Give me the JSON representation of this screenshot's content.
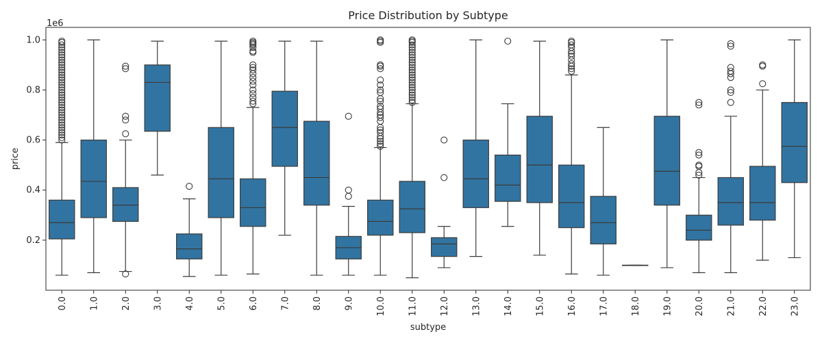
{
  "chart_data": {
    "type": "box",
    "title": "Price Distribution by Subtype",
    "xlabel": "subtype",
    "ylabel": "price",
    "y_offset_label": "1e6",
    "ylim": [
      0.0,
      1.05
    ],
    "y_ticks": [
      0.2,
      0.4,
      0.6,
      0.8,
      1.0
    ],
    "y_tick_labels": [
      "0.2",
      "0.4",
      "0.6",
      "0.8",
      "1.0"
    ],
    "box_color": "#3274a1",
    "line_color": "#3a3a3a",
    "categories": [
      "0.0",
      "1.0",
      "2.0",
      "3.0",
      "4.0",
      "5.0",
      "6.0",
      "7.0",
      "8.0",
      "9.0",
      "10.0",
      "11.0",
      "12.0",
      "13.0",
      "14.0",
      "15.0",
      "16.0",
      "17.0",
      "18.0",
      "19.0",
      "20.0",
      "21.0",
      "22.0",
      "23.0"
    ],
    "boxes": [
      {
        "whislo": 0.06,
        "q1": 0.205,
        "med": 0.27,
        "q3": 0.36,
        "whishi": 0.59,
        "fliers": [
          0.6,
          0.61,
          0.62,
          0.63,
          0.64,
          0.65,
          0.66,
          0.67,
          0.68,
          0.69,
          0.7,
          0.71,
          0.72,
          0.73,
          0.74,
          0.75,
          0.76,
          0.77,
          0.78,
          0.79,
          0.8,
          0.81,
          0.82,
          0.83,
          0.84,
          0.85,
          0.86,
          0.87,
          0.88,
          0.89,
          0.9,
          0.91,
          0.92,
          0.93,
          0.94,
          0.95,
          0.96,
          0.97,
          0.98,
          0.99,
          0.995
        ]
      },
      {
        "whislo": 0.07,
        "q1": 0.29,
        "med": 0.435,
        "q3": 0.6,
        "whishi": 1.0,
        "fliers": []
      },
      {
        "whislo": 0.075,
        "q1": 0.275,
        "med": 0.34,
        "q3": 0.41,
        "whishi": 0.6,
        "fliers": [
          0.065,
          0.625,
          0.68,
          0.695,
          0.885,
          0.895
        ]
      },
      {
        "whislo": 0.46,
        "q1": 0.635,
        "med": 0.83,
        "q3": 0.9,
        "whishi": 0.995,
        "fliers": []
      },
      {
        "whislo": 0.055,
        "q1": 0.125,
        "med": 0.165,
        "q3": 0.225,
        "whishi": 0.365,
        "fliers": [
          0.415
        ]
      },
      {
        "whislo": 0.06,
        "q1": 0.29,
        "med": 0.445,
        "q3": 0.65,
        "whishi": 0.995,
        "fliers": []
      },
      {
        "whislo": 0.065,
        "q1": 0.255,
        "med": 0.33,
        "q3": 0.445,
        "whishi": 0.73,
        "fliers": [
          0.745,
          0.755,
          0.77,
          0.785,
          0.8,
          0.82,
          0.835,
          0.85,
          0.865,
          0.88,
          0.89,
          0.9,
          0.95,
          0.955,
          0.97,
          0.98,
          0.985,
          0.99,
          0.995
        ]
      },
      {
        "whislo": 0.22,
        "q1": 0.495,
        "med": 0.65,
        "q3": 0.795,
        "whishi": 0.995,
        "fliers": []
      },
      {
        "whislo": 0.06,
        "q1": 0.34,
        "med": 0.45,
        "q3": 0.675,
        "whishi": 0.995,
        "fliers": []
      },
      {
        "whislo": 0.06,
        "q1": 0.125,
        "med": 0.17,
        "q3": 0.215,
        "whishi": 0.335,
        "fliers": [
          0.375,
          0.4,
          0.695
        ]
      },
      {
        "whislo": 0.06,
        "q1": 0.22,
        "med": 0.275,
        "q3": 0.36,
        "whishi": 0.57,
        "fliers": [
          0.575,
          0.585,
          0.595,
          0.605,
          0.615,
          0.63,
          0.64,
          0.65,
          0.675,
          0.69,
          0.7,
          0.71,
          0.725,
          0.735,
          0.755,
          0.765,
          0.79,
          0.8,
          0.82,
          0.84,
          0.885,
          0.895,
          0.9,
          0.99,
          0.995,
          1.0
        ]
      },
      {
        "whislo": 0.05,
        "q1": 0.23,
        "med": 0.325,
        "q3": 0.435,
        "whishi": 0.745,
        "fliers": [
          0.75,
          0.76,
          0.77,
          0.78,
          0.79,
          0.8,
          0.81,
          0.82,
          0.83,
          0.84,
          0.85,
          0.86,
          0.87,
          0.88,
          0.89,
          0.9,
          0.91,
          0.92,
          0.93,
          0.94,
          0.95,
          0.96,
          0.97,
          0.98,
          0.99,
          0.995,
          1.0
        ]
      },
      {
        "whislo": 0.09,
        "q1": 0.135,
        "med": 0.185,
        "q3": 0.21,
        "whishi": 0.255,
        "fliers": [
          0.45,
          0.6
        ]
      },
      {
        "whislo": 0.135,
        "q1": 0.33,
        "med": 0.445,
        "q3": 0.6,
        "whishi": 1.0,
        "fliers": []
      },
      {
        "whislo": 0.255,
        "q1": 0.355,
        "med": 0.42,
        "q3": 0.54,
        "whishi": 0.745,
        "fliers": [
          0.995
        ]
      },
      {
        "whislo": 0.14,
        "q1": 0.35,
        "med": 0.5,
        "q3": 0.695,
        "whishi": 0.995,
        "fliers": []
      },
      {
        "whislo": 0.065,
        "q1": 0.25,
        "med": 0.35,
        "q3": 0.5,
        "whishi": 0.86,
        "fliers": [
          0.875,
          0.885,
          0.895,
          0.905,
          0.92,
          0.935,
          0.945,
          0.955,
          0.97,
          0.98,
          0.99,
          0.995
        ]
      },
      {
        "whislo": 0.06,
        "q1": 0.185,
        "med": 0.27,
        "q3": 0.375,
        "whishi": 0.65,
        "fliers": []
      },
      {
        "whislo": 0.1,
        "q1": 0.1,
        "med": 0.1,
        "q3": 0.1,
        "whishi": 0.1,
        "fliers": []
      },
      {
        "whislo": 0.09,
        "q1": 0.34,
        "med": 0.475,
        "q3": 0.695,
        "whishi": 1.0,
        "fliers": []
      },
      {
        "whislo": 0.07,
        "q1": 0.2,
        "med": 0.24,
        "q3": 0.3,
        "whishi": 0.45,
        "fliers": [
          0.46,
          0.47,
          0.495,
          0.5,
          0.54,
          0.55,
          0.74,
          0.75
        ]
      },
      {
        "whislo": 0.07,
        "q1": 0.26,
        "med": 0.35,
        "q3": 0.45,
        "whishi": 0.695,
        "fliers": [
          0.75,
          0.79,
          0.8,
          0.85,
          0.865,
          0.875,
          0.89,
          0.975,
          0.985
        ]
      },
      {
        "whislo": 0.12,
        "q1": 0.28,
        "med": 0.35,
        "q3": 0.495,
        "whishi": 0.8,
        "fliers": [
          0.825,
          0.895,
          0.9
        ]
      },
      {
        "whislo": 0.13,
        "q1": 0.43,
        "med": 0.575,
        "q3": 0.75,
        "whishi": 1.0,
        "fliers": []
      }
    ]
  }
}
